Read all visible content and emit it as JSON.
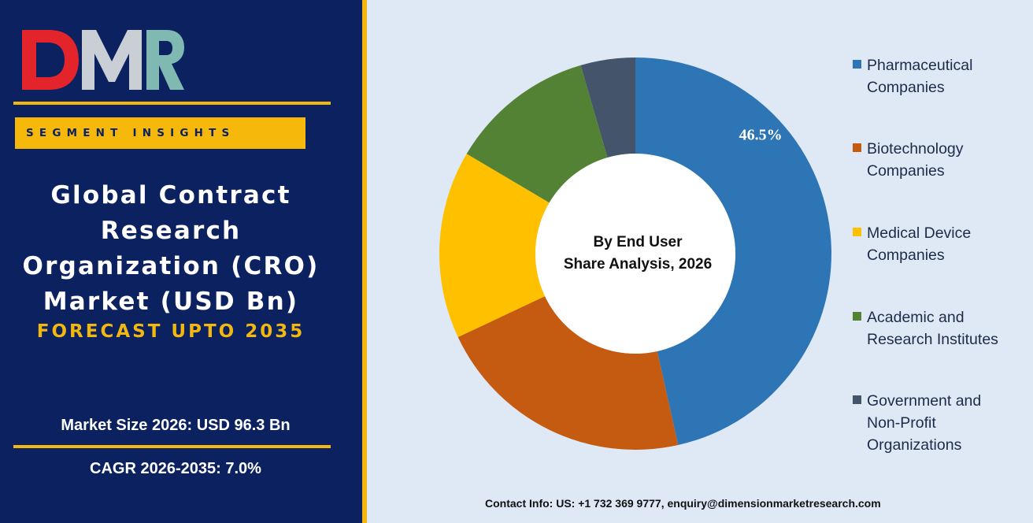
{
  "logo": {
    "text": "DMR",
    "colors": {
      "d": "#e3242b",
      "m": "#c9cfd4",
      "r": "#7fb9b2"
    }
  },
  "segment_label": "SEGMENT INSIGHTS",
  "title_lines": [
    "Global Contract",
    "Research",
    "Organization (CRO)",
    "Market (USD Bn)"
  ],
  "forecast": "FORECAST UPTO 2035",
  "market_size": "Market Size 2026: USD 96.3 Bn",
  "cagr": "CAGR 2026-2035: 7.0%",
  "contact": "Contact Info: US: +1 732 369 9777, enquiry@dimensionmarketresearch.com",
  "colors": {
    "navy": "#0b2160",
    "gold": "#f2b80f",
    "panel": "#dfe9f5"
  },
  "chart_data": {
    "type": "donut",
    "center_label": [
      "By End User",
      "Share Analysis, 2026"
    ],
    "categories": [
      "Pharmaceutical Companies",
      "Biotechnology Companies",
      "Medical Device Companies",
      "Academic and Research Institutes",
      "Government and Non-Profit Organizations"
    ],
    "values": [
      46.5,
      21.5,
      15.5,
      12.0,
      4.5
    ],
    "data_labels": [
      "46.5%",
      "",
      "",
      "",
      ""
    ],
    "colors": [
      "#2e75b6",
      "#c55a11",
      "#ffc000",
      "#548235",
      "#44546a"
    ],
    "legend_placement": "right"
  }
}
